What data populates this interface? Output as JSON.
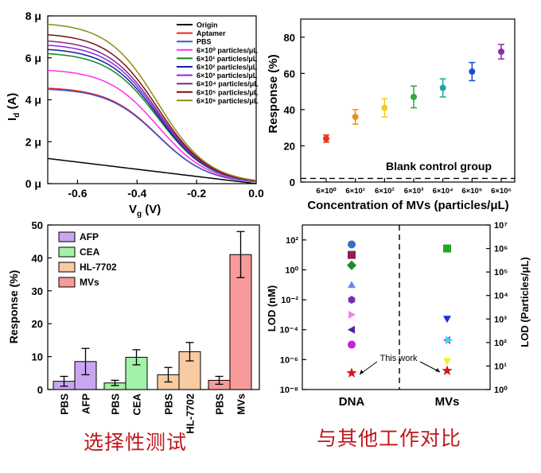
{
  "captions": {
    "left": "选择性测试",
    "right": "与其他工作对比"
  },
  "chart_data": [
    {
      "type": "line",
      "panel": "transfer-curves",
      "xlabel": "V",
      "xlabel_sub": "g",
      "xlabel_unit": " (V)",
      "ylabel": "I",
      "ylabel_sub": "d",
      "ylabel_unit": " (A)",
      "xlim": [
        -0.7,
        0.0
      ],
      "ylim": [
        0,
        8
      ],
      "xticks": [
        -0.6,
        -0.4,
        -0.2,
        0.0
      ],
      "xtick_labels": [
        "-0.6",
        "-0.4",
        "-0.2",
        "0.0"
      ],
      "yticks": [
        0,
        2,
        4,
        6,
        8
      ],
      "ytick_labels": [
        "0 μ",
        "2 μ",
        "4 μ",
        "6 μ",
        "8 μ"
      ],
      "legend_position": "top-right",
      "series": [
        {
          "name": "Origin",
          "color": "#000000",
          "i0": 1.2,
          "type": "linear"
        },
        {
          "name": "Aptamer",
          "color": "#e8251f",
          "i0": 4.55
        },
        {
          "name": "PBS",
          "color": "#3a55d4",
          "i0": 4.5
        },
        {
          "name": "6×10⁰ particles/μL",
          "color": "#ff2ef0",
          "i0": 5.4
        },
        {
          "name": "6×10¹ particles/μL",
          "color": "#0c8a1f",
          "i0": 6.2
        },
        {
          "name": "6×10² particles/μL",
          "color": "#1a1aa8",
          "i0": 6.4
        },
        {
          "name": "6×10³ particles/μL",
          "color": "#8a2be2",
          "i0": 6.6
        },
        {
          "name": "6×10⁴ particles/μL",
          "color": "#7e2a8f",
          "i0": 6.8
        },
        {
          "name": "6×10⁵ particles/μL",
          "color": "#7a1010",
          "i0": 7.1
        },
        {
          "name": "6×10⁶ particles/μL",
          "color": "#8f8a14",
          "i0": 7.6
        }
      ]
    },
    {
      "type": "scatter",
      "panel": "concentration-response",
      "xlabel": "Concentration of MVs (particles/μL)",
      "ylabel": "Response (%)",
      "ylim": [
        0,
        90
      ],
      "yticks": [
        0,
        20,
        40,
        60,
        80
      ],
      "categories": [
        "6×10⁰",
        "6×10¹",
        "6×10²",
        "6×10³",
        "6×10⁴",
        "6×10⁵",
        "6×10⁶"
      ],
      "values": [
        24,
        36,
        41,
        47,
        52,
        61,
        72
      ],
      "errors": [
        2,
        4,
        5,
        6,
        5,
        5,
        4
      ],
      "colors": [
        "#e8341f",
        "#e8921c",
        "#f2cc1c",
        "#2fa83a",
        "#1aa9a0",
        "#1a4ed0",
        "#8a2da8"
      ],
      "baseline": 2,
      "baseline_label": "Blank control group"
    },
    {
      "type": "bar",
      "panel": "selectivity",
      "ylabel": "Response (%)",
      "ylim": [
        0,
        50
      ],
      "yticks": [
        0,
        10,
        20,
        30,
        40,
        50
      ],
      "legend_position": "top-left",
      "groups": [
        {
          "control": "PBS",
          "target": "AFP",
          "color": "#c9a6f2",
          "pbs": 2.5,
          "pbs_err": 1.5,
          "value": 8.5,
          "err": 4.0
        },
        {
          "control": "PBS",
          "target": "CEA",
          "color": "#a2f2a8",
          "pbs": 2.0,
          "pbs_err": 0.8,
          "value": 9.8,
          "err": 2.3
        },
        {
          "control": "PBS",
          "target": "HL-7702",
          "color": "#f9cba2",
          "pbs": 4.5,
          "pbs_err": 2.2,
          "value": 11.5,
          "err": 2.8
        },
        {
          "control": "PBS",
          "target": "MVs",
          "color": "#f79a9a",
          "pbs": 2.8,
          "pbs_err": 1.2,
          "value": 41.0,
          "err": 7.0
        }
      ]
    },
    {
      "type": "scatter",
      "panel": "lod-comparison",
      "ylabel_left": "LOD (nM)",
      "ylabel_right": "LOD (Particles/μL)",
      "yscale": "log",
      "ylim_left": [
        1e-08,
        1000.0
      ],
      "ylim_right": [
        1,
        10000000.0
      ],
      "yticks_left": [
        "10²",
        "10⁰",
        "10⁻²",
        "10⁻⁴",
        "10⁻⁶",
        "10⁻⁸"
      ],
      "yticks_right": [
        "10⁷",
        "10⁶",
        "10⁵",
        "10⁴",
        "10³",
        "10²",
        "10¹",
        "10⁰"
      ],
      "categories": [
        "DNA",
        "MVs"
      ],
      "annotation": "This work",
      "dna_points": [
        {
          "lod_exp": 1.7,
          "color": "#3a6fc0",
          "shape": "circle"
        },
        {
          "lod_exp": 1.0,
          "color": "#8f1f4f",
          "shape": "square"
        },
        {
          "lod_exp": 0.3,
          "color": "#1f8a2a",
          "shape": "diamond"
        },
        {
          "lod_exp": -1.0,
          "color": "#6a86f0",
          "shape": "triangle-up"
        },
        {
          "lod_exp": -2.0,
          "color": "#7a2bb0",
          "shape": "hexagon"
        },
        {
          "lod_exp": -3.0,
          "color": "#ff7ff0",
          "shape": "triangle-right"
        },
        {
          "lod_exp": -4.0,
          "color": "#5a1fa8",
          "shape": "triangle-left"
        },
        {
          "lod_exp": -5.0,
          "color": "#c81fd8",
          "shape": "circle"
        },
        {
          "lod_exp": -6.9,
          "color": "#d8181f",
          "shape": "star"
        }
      ],
      "mv_points": [
        {
          "lod_exp": 6.0,
          "color": "#1fa82a",
          "shape": "square"
        },
        {
          "lod_exp": 3.0,
          "color": "#1a2fd8",
          "shape": "triangle-down"
        },
        {
          "lod_exp": 2.1,
          "color": "#e81fe8",
          "shape": "triangle-left"
        },
        {
          "lod_exp": 2.1,
          "color": "#2fd8f0",
          "shape": "triangle-right"
        },
        {
          "lod_exp": 1.2,
          "color": "#f2f21f",
          "shape": "triangle-down"
        },
        {
          "lod_exp": 0.8,
          "color": "#d8181f",
          "shape": "star"
        }
      ]
    }
  ]
}
